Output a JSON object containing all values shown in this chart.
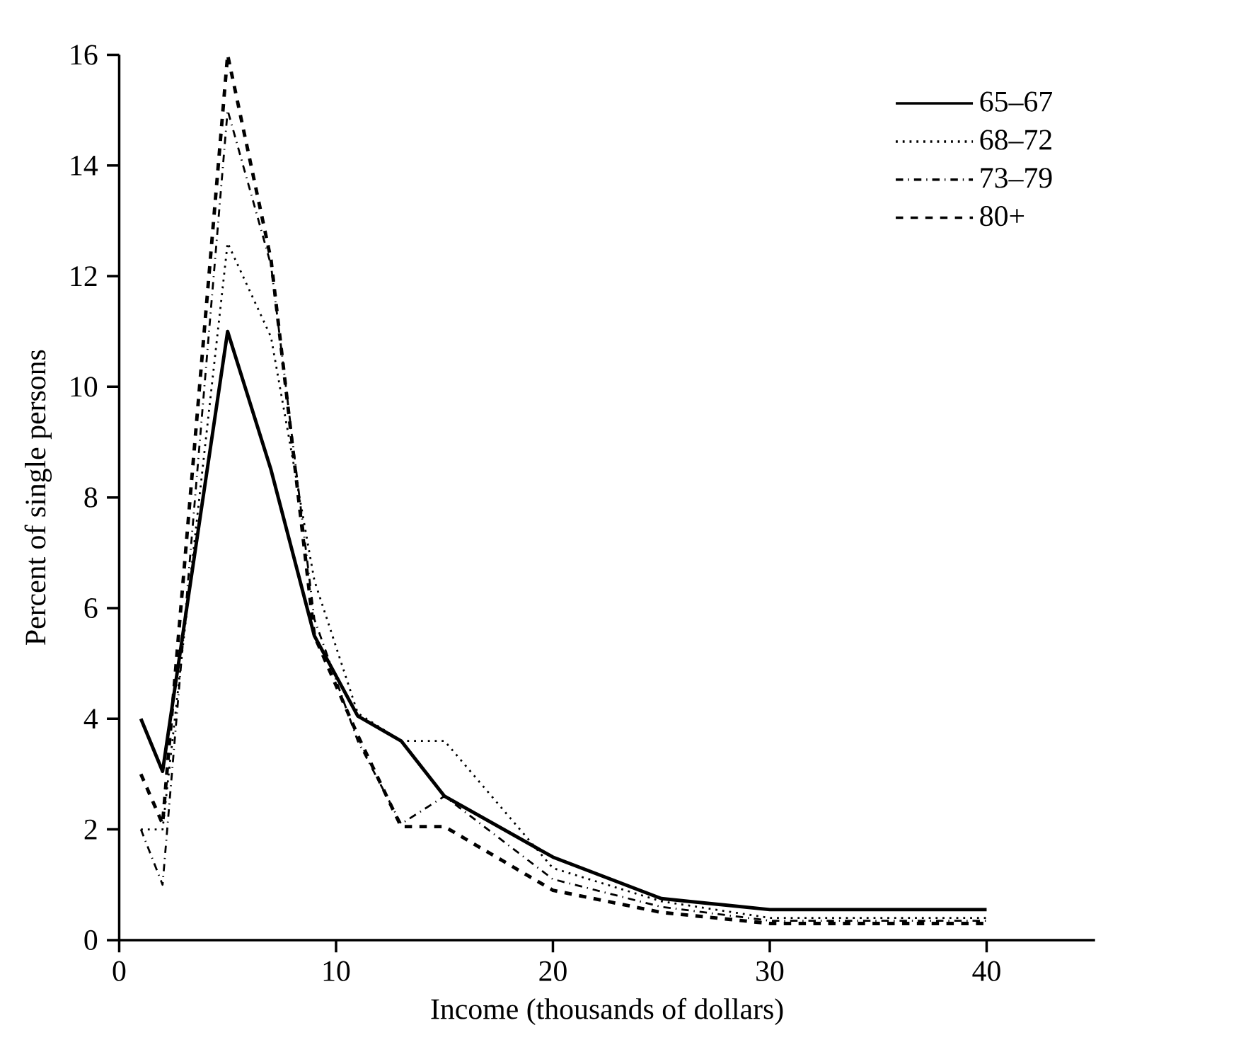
{
  "chart_data": {
    "type": "line",
    "xlabel": "Income (thousands of dollars)",
    "ylabel": "Percent of single persons",
    "x": [
      1,
      2,
      5,
      7,
      9,
      11,
      13,
      15,
      20,
      25,
      30,
      40
    ],
    "series": [
      {
        "name": "65–67",
        "color": "#000000",
        "line_style": "solid",
        "values": [
          4.0,
          3.05,
          11.0,
          8.5,
          5.5,
          4.05,
          3.6,
          2.6,
          1.5,
          0.75,
          0.55,
          0.55
        ]
      },
      {
        "name": "68–72",
        "color": "#000000",
        "line_style": "dotted",
        "values": [
          2.0,
          2.0,
          12.6,
          10.9,
          6.5,
          4.1,
          3.6,
          3.6,
          1.3,
          0.7,
          0.4,
          0.4
        ]
      },
      {
        "name": "73–79",
        "color": "#000000",
        "line_style": "dashdot",
        "values": [
          2.0,
          1.0,
          15.0,
          12.2,
          5.8,
          3.6,
          2.1,
          2.6,
          1.1,
          0.6,
          0.35,
          0.35
        ]
      },
      {
        "name": "80+",
        "color": "#000000",
        "line_style": "dashed",
        "values": [
          3.0,
          2.1,
          16.0,
          12.3,
          5.5,
          3.7,
          2.05,
          2.05,
          0.9,
          0.5,
          0.3,
          0.3
        ]
      }
    ],
    "xlim": [
      0,
      45
    ],
    "xticks": [
      0,
      10,
      20,
      30,
      40
    ],
    "ylim": [
      0,
      16
    ],
    "yticks": [
      0,
      2,
      4,
      6,
      8,
      10,
      12,
      14,
      16
    ],
    "grid": false,
    "legend": "top right",
    "marker": "none"
  }
}
